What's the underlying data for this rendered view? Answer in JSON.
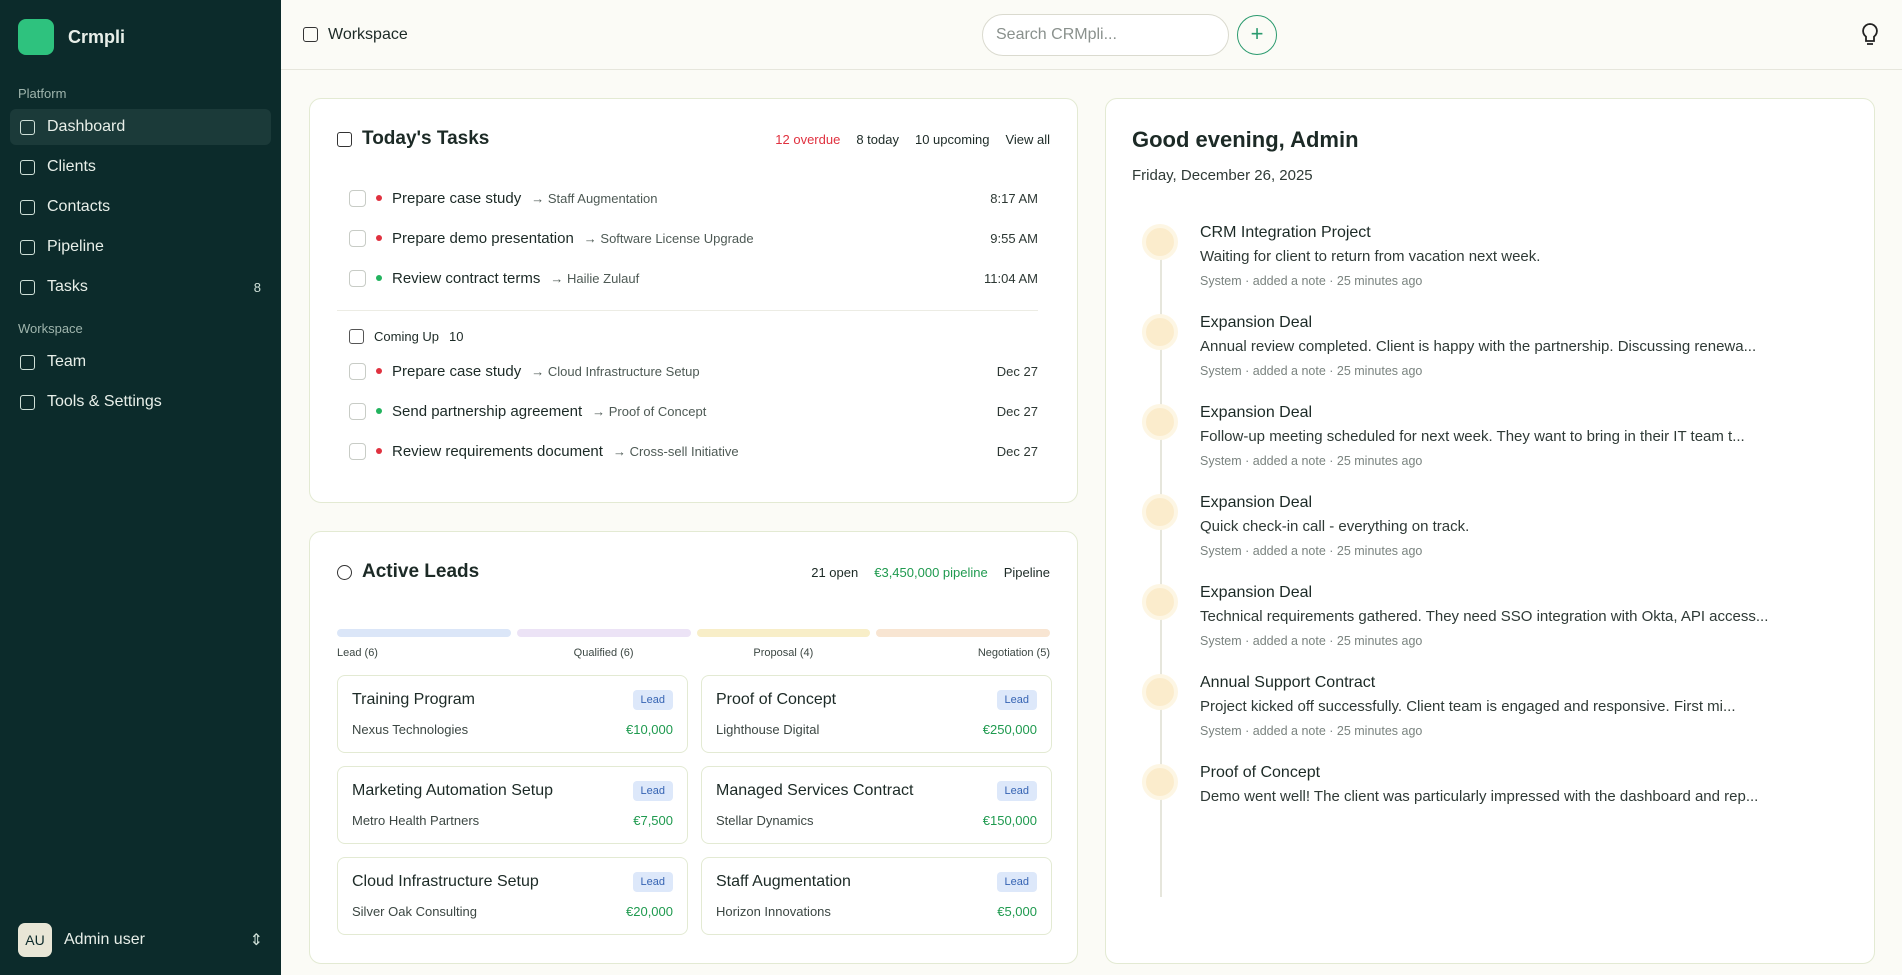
{
  "sidebar": {
    "brand": "Crmpli",
    "sections": [
      {
        "label": "Platform",
        "items": [
          {
            "label": "Dashboard"
          },
          {
            "label": "Clients"
          },
          {
            "label": "Contacts"
          },
          {
            "label": "Pipeline"
          },
          {
            "label": "Tasks",
            "badge": "8"
          }
        ]
      },
      {
        "label": "Workspace",
        "items": [
          {
            "label": "Team"
          },
          {
            "label": "Tools & Settings"
          }
        ]
      }
    ],
    "user": {
      "initials": "AU",
      "name": "Admin user"
    }
  },
  "header": {
    "breadcrumb": "Workspace",
    "search_placeholder": "Search CRMpli..."
  },
  "tasks": {
    "title": "Today's Tasks",
    "overdue": "12 overdue",
    "today": "8 today",
    "upcoming": "10 upcoming",
    "view_all": "View all",
    "today_items": [
      {
        "title": "Prepare case study",
        "related": "Staff Augmentation",
        "time": "8:17 AM",
        "color": "#e0313f"
      },
      {
        "title": "Prepare demo presentation",
        "related": "Software License Upgrade",
        "time": "9:55 AM",
        "color": "#e0313f"
      },
      {
        "title": "Review contract terms",
        "related": "Hailie Zulauf",
        "time": "11:04 AM",
        "color": "#22b35e"
      }
    ],
    "coming_up_label": "Coming Up",
    "coming_up_count": "10",
    "upcoming_items": [
      {
        "title": "Prepare case study",
        "related": "Cloud Infrastructure Setup",
        "time": "Dec 27",
        "color": "#e0313f"
      },
      {
        "title": "Send partnership agreement",
        "related": "Proof of Concept",
        "time": "Dec 27",
        "color": "#22b35e"
      },
      {
        "title": "Review requirements document",
        "related": "Cross-sell Initiative",
        "time": "Dec 27",
        "color": "#e0313f"
      }
    ]
  },
  "leads": {
    "title": "Active Leads",
    "open": "21 open",
    "pipeline_value": "€3,450,000 pipeline",
    "pipeline_link": "Pipeline",
    "stages": [
      {
        "label": "Lead (6)",
        "color": "#dbe6f8"
      },
      {
        "label": "Qualified (6)",
        "color": "#ece3f6"
      },
      {
        "label": "Proposal (4)",
        "color": "#f8eec8"
      },
      {
        "label": "Negotiation (5)",
        "color": "#f8e5d2"
      }
    ],
    "cards": [
      {
        "title": "Training Program",
        "tag": "Lead",
        "company": "Nexus Technologies",
        "value": "€10,000"
      },
      {
        "title": "Proof of Concept",
        "tag": "Lead",
        "company": "Lighthouse Digital",
        "value": "€250,000"
      },
      {
        "title": "Marketing Automation Setup",
        "tag": "Lead",
        "company": "Metro Health Partners",
        "value": "€7,500"
      },
      {
        "title": "Managed Services Contract",
        "tag": "Lead",
        "company": "Stellar Dynamics",
        "value": "€150,000"
      },
      {
        "title": "Cloud Infrastructure Setup",
        "tag": "Lead",
        "company": "Silver Oak Consulting",
        "value": "€20,000"
      },
      {
        "title": "Staff Augmentation",
        "tag": "Lead",
        "company": "Horizon Innovations",
        "value": "€5,000"
      }
    ]
  },
  "activity": {
    "greeting": "Good evening, Admin",
    "date": "Friday, December 26, 2025",
    "items": [
      {
        "title": "CRM Integration Project",
        "note": "Waiting for client to return from vacation next week.",
        "meta": "System · added a note · 25 minutes ago"
      },
      {
        "title": "Expansion Deal",
        "note": "Annual review completed. Client is happy with the partnership. Discussing renewa...",
        "meta": "System · added a note · 25 minutes ago"
      },
      {
        "title": "Expansion Deal",
        "note": "Follow-up meeting scheduled for next week. They want to bring in their IT team t...",
        "meta": "System · added a note · 25 minutes ago"
      },
      {
        "title": "Expansion Deal",
        "note": "Quick check-in call - everything on track.",
        "meta": "System · added a note · 25 minutes ago"
      },
      {
        "title": "Expansion Deal",
        "note": "Technical requirements gathered. They need SSO integration with Okta, API access...",
        "meta": "System · added a note · 25 minutes ago"
      },
      {
        "title": "Annual Support Contract",
        "note": "Project kicked off successfully. Client team is engaged and responsive. First mi...",
        "meta": "System · added a note · 25 minutes ago"
      },
      {
        "title": "Proof of Concept",
        "note": "Demo went well! The client was particularly impressed with the dashboard and rep..."
      }
    ]
  }
}
